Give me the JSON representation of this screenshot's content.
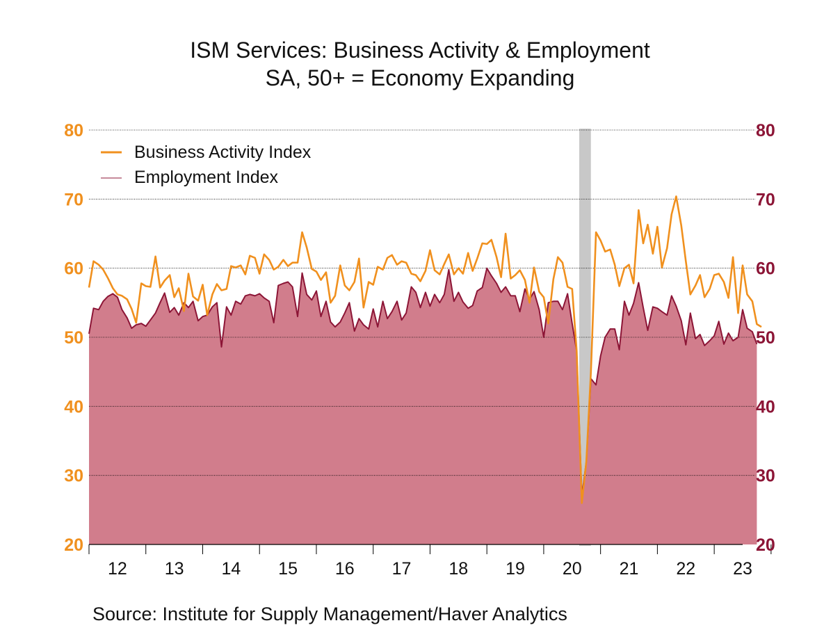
{
  "chart_data": {
    "type": "area+line",
    "title": "ISM Services: Business Activity & Employment",
    "subtitle": "SA, 50+ = Economy Expanding",
    "source": "Source:  Institute for Supply Management/Haver Analytics",
    "x_ticks": [
      "12",
      "13",
      "14",
      "15",
      "16",
      "17",
      "18",
      "19",
      "20",
      "21",
      "22",
      "23"
    ],
    "y_ticks": [
      20,
      30,
      40,
      50,
      60,
      70,
      80
    ],
    "ylim": [
      20,
      80
    ],
    "xlim": [
      2011.5,
      2023.0
    ],
    "grid": true,
    "legend_position": "top-left",
    "recession_band": [
      2020.125,
      2020.33
    ],
    "colors": {
      "business": "#f0901e",
      "employment_fill": "#d17d8c",
      "employment_line": "#8c1536",
      "left_axis": "#f0901e",
      "right_axis": "#8c1536",
      "band": "#c8c8c8"
    },
    "series": [
      {
        "name": "Business Activity Index",
        "style": "line",
        "points": [
          [
            2011.5,
            57.2
          ],
          [
            2011.58,
            61.0
          ],
          [
            2011.67,
            60.5
          ],
          [
            2011.75,
            59.8
          ],
          [
            2011.83,
            58.6
          ],
          [
            2011.92,
            57.1
          ],
          [
            2012.0,
            56.2
          ],
          [
            2012.08,
            56.0
          ],
          [
            2012.17,
            55.5
          ],
          [
            2012.25,
            54.1
          ],
          [
            2012.33,
            52.1
          ],
          [
            2012.42,
            57.8
          ],
          [
            2012.5,
            57.4
          ],
          [
            2012.58,
            57.3
          ],
          [
            2012.67,
            61.7
          ],
          [
            2012.75,
            57.2
          ],
          [
            2012.83,
            58.2
          ],
          [
            2012.92,
            59.0
          ],
          [
            2013.0,
            55.8
          ],
          [
            2013.08,
            57.1
          ],
          [
            2013.17,
            53.8
          ],
          [
            2013.25,
            59.2
          ],
          [
            2013.33,
            55.9
          ],
          [
            2013.42,
            55.3
          ],
          [
            2013.5,
            57.6
          ],
          [
            2013.58,
            53.2
          ],
          [
            2013.67,
            56.2
          ],
          [
            2013.75,
            57.7
          ],
          [
            2013.83,
            56.8
          ],
          [
            2013.92,
            57.0
          ],
          [
            2014.0,
            60.3
          ],
          [
            2014.08,
            60.1
          ],
          [
            2014.17,
            60.4
          ],
          [
            2014.25,
            59.1
          ],
          [
            2014.33,
            61.8
          ],
          [
            2014.42,
            61.5
          ],
          [
            2014.5,
            59.2
          ],
          [
            2014.58,
            62.0
          ],
          [
            2014.67,
            61.2
          ],
          [
            2014.75,
            59.8
          ],
          [
            2014.83,
            60.2
          ],
          [
            2014.92,
            61.2
          ],
          [
            2015.0,
            60.3
          ],
          [
            2015.08,
            60.8
          ],
          [
            2015.17,
            60.8
          ],
          [
            2015.25,
            65.2
          ],
          [
            2015.33,
            63.0
          ],
          [
            2015.42,
            59.9
          ],
          [
            2015.5,
            59.5
          ],
          [
            2015.58,
            58.3
          ],
          [
            2015.67,
            59.4
          ],
          [
            2015.75,
            55.0
          ],
          [
            2015.83,
            56.0
          ],
          [
            2015.92,
            60.4
          ],
          [
            2016.0,
            57.5
          ],
          [
            2016.08,
            56.8
          ],
          [
            2016.17,
            58.0
          ],
          [
            2016.25,
            61.4
          ],
          [
            2016.33,
            54.3
          ],
          [
            2016.42,
            58.0
          ],
          [
            2016.5,
            57.6
          ],
          [
            2016.58,
            60.2
          ],
          [
            2016.67,
            59.8
          ],
          [
            2016.75,
            61.5
          ],
          [
            2016.83,
            61.9
          ],
          [
            2016.92,
            60.5
          ],
          [
            2017.0,
            61.0
          ],
          [
            2017.08,
            60.8
          ],
          [
            2017.17,
            59.2
          ],
          [
            2017.25,
            59.0
          ],
          [
            2017.33,
            58.1
          ],
          [
            2017.42,
            59.6
          ],
          [
            2017.5,
            62.6
          ],
          [
            2017.58,
            59.7
          ],
          [
            2017.67,
            59.1
          ],
          [
            2017.75,
            60.6
          ],
          [
            2017.83,
            62.0
          ],
          [
            2017.92,
            59.1
          ],
          [
            2018.0,
            60.0
          ],
          [
            2018.08,
            59.2
          ],
          [
            2018.17,
            62.2
          ],
          [
            2018.25,
            59.6
          ],
          [
            2018.33,
            61.4
          ],
          [
            2018.42,
            63.6
          ],
          [
            2018.5,
            63.5
          ],
          [
            2018.58,
            64.1
          ],
          [
            2018.67,
            61.6
          ],
          [
            2018.75,
            58.7
          ],
          [
            2018.83,
            65.0
          ],
          [
            2018.92,
            58.5
          ],
          [
            2019.0,
            59.0
          ],
          [
            2019.08,
            59.7
          ],
          [
            2019.17,
            58.3
          ],
          [
            2019.25,
            55.0
          ],
          [
            2019.33,
            60.1
          ],
          [
            2019.42,
            56.6
          ],
          [
            2019.5,
            55.8
          ],
          [
            2019.58,
            52.0
          ],
          [
            2019.67,
            58.4
          ],
          [
            2019.75,
            61.6
          ],
          [
            2019.83,
            60.8
          ],
          [
            2019.92,
            57.3
          ],
          [
            2020.0,
            57.0
          ],
          [
            2020.08,
            48.0
          ],
          [
            2020.17,
            26.0
          ],
          [
            2020.25,
            32.0
          ],
          [
            2020.33,
            45.0
          ],
          [
            2020.42,
            65.2
          ],
          [
            2020.5,
            64.0
          ],
          [
            2020.58,
            62.4
          ],
          [
            2020.67,
            62.7
          ],
          [
            2020.75,
            60.5
          ],
          [
            2020.83,
            57.4
          ],
          [
            2020.92,
            60.0
          ],
          [
            2021.0,
            60.5
          ],
          [
            2021.08,
            57.8
          ],
          [
            2021.17,
            68.4
          ],
          [
            2021.25,
            63.6
          ],
          [
            2021.33,
            66.3
          ],
          [
            2021.42,
            62.1
          ],
          [
            2021.5,
            66.0
          ],
          [
            2021.58,
            60.1
          ],
          [
            2021.67,
            62.9
          ],
          [
            2021.75,
            67.8
          ],
          [
            2021.83,
            70.4
          ],
          [
            2021.92,
            66.2
          ],
          [
            2022.0,
            61.0
          ],
          [
            2022.08,
            56.2
          ],
          [
            2022.17,
            57.5
          ],
          [
            2022.25,
            59.0
          ],
          [
            2022.33,
            55.8
          ],
          [
            2022.42,
            57.0
          ],
          [
            2022.5,
            59.0
          ],
          [
            2022.58,
            59.2
          ],
          [
            2022.67,
            58.0
          ],
          [
            2022.75,
            55.7
          ],
          [
            2022.83,
            61.6
          ],
          [
            2022.92,
            53.5
          ],
          [
            2023.0,
            60.4
          ],
          [
            2023.08,
            56.2
          ],
          [
            2023.17,
            55.2
          ],
          [
            2023.25,
            51.9
          ],
          [
            2023.33,
            51.5
          ]
        ]
      },
      {
        "name": "Employment Index",
        "style": "area",
        "points": [
          [
            2011.5,
            50.5
          ],
          [
            2011.58,
            54.2
          ],
          [
            2011.67,
            54.0
          ],
          [
            2011.75,
            55.2
          ],
          [
            2011.83,
            55.9
          ],
          [
            2011.92,
            56.3
          ],
          [
            2012.0,
            55.8
          ],
          [
            2012.08,
            54.0
          ],
          [
            2012.17,
            52.8
          ],
          [
            2012.25,
            51.3
          ],
          [
            2012.33,
            51.8
          ],
          [
            2012.42,
            52.0
          ],
          [
            2012.5,
            51.6
          ],
          [
            2012.58,
            52.5
          ],
          [
            2012.67,
            53.5
          ],
          [
            2012.75,
            55.0
          ],
          [
            2012.83,
            56.4
          ],
          [
            2012.92,
            53.6
          ],
          [
            2013.0,
            54.3
          ],
          [
            2013.08,
            53.2
          ],
          [
            2013.17,
            55.0
          ],
          [
            2013.25,
            54.3
          ],
          [
            2013.33,
            55.2
          ],
          [
            2013.42,
            52.4
          ],
          [
            2013.5,
            53.0
          ],
          [
            2013.58,
            53.2
          ],
          [
            2013.67,
            54.4
          ],
          [
            2013.75,
            55.0
          ],
          [
            2013.83,
            48.6
          ],
          [
            2013.92,
            54.4
          ],
          [
            2014.0,
            53.2
          ],
          [
            2014.08,
            55.2
          ],
          [
            2014.17,
            54.8
          ],
          [
            2014.25,
            56.0
          ],
          [
            2014.33,
            56.2
          ],
          [
            2014.42,
            56.0
          ],
          [
            2014.5,
            56.3
          ],
          [
            2014.58,
            55.7
          ],
          [
            2014.67,
            55.2
          ],
          [
            2014.75,
            52.1
          ],
          [
            2014.83,
            57.5
          ],
          [
            2014.92,
            57.8
          ],
          [
            2015.0,
            58.0
          ],
          [
            2015.08,
            57.3
          ],
          [
            2015.17,
            53.0
          ],
          [
            2015.25,
            59.3
          ],
          [
            2015.33,
            56.2
          ],
          [
            2015.42,
            55.4
          ],
          [
            2015.5,
            56.7
          ],
          [
            2015.58,
            53.0
          ],
          [
            2015.67,
            55.2
          ],
          [
            2015.75,
            52.2
          ],
          [
            2015.83,
            51.5
          ],
          [
            2015.92,
            52.2
          ],
          [
            2016.0,
            53.5
          ],
          [
            2016.08,
            55.0
          ],
          [
            2016.17,
            50.9
          ],
          [
            2016.25,
            52.7
          ],
          [
            2016.33,
            51.8
          ],
          [
            2016.42,
            51.2
          ],
          [
            2016.5,
            54.1
          ],
          [
            2016.58,
            51.5
          ],
          [
            2016.67,
            55.2
          ],
          [
            2016.75,
            52.7
          ],
          [
            2016.83,
            53.7
          ],
          [
            2016.92,
            55.2
          ],
          [
            2017.0,
            52.5
          ],
          [
            2017.08,
            53.5
          ],
          [
            2017.17,
            57.3
          ],
          [
            2017.25,
            56.5
          ],
          [
            2017.33,
            54.3
          ],
          [
            2017.42,
            56.5
          ],
          [
            2017.5,
            54.5
          ],
          [
            2017.58,
            56.2
          ],
          [
            2017.67,
            55.0
          ],
          [
            2017.75,
            56.2
          ],
          [
            2017.83,
            59.8
          ],
          [
            2017.92,
            55.2
          ],
          [
            2018.0,
            56.5
          ],
          [
            2018.08,
            55.1
          ],
          [
            2018.17,
            54.2
          ],
          [
            2018.25,
            54.6
          ],
          [
            2018.33,
            56.7
          ],
          [
            2018.42,
            57.2
          ],
          [
            2018.5,
            60.0
          ],
          [
            2018.58,
            58.9
          ],
          [
            2018.67,
            57.8
          ],
          [
            2018.75,
            56.5
          ],
          [
            2018.83,
            57.3
          ],
          [
            2018.92,
            56.0
          ],
          [
            2019.0,
            56.0
          ],
          [
            2019.08,
            53.7
          ],
          [
            2019.17,
            57.0
          ],
          [
            2019.25,
            55.5
          ],
          [
            2019.33,
            56.6
          ],
          [
            2019.42,
            54.0
          ],
          [
            2019.5,
            50.0
          ],
          [
            2019.58,
            55.0
          ],
          [
            2019.67,
            55.2
          ],
          [
            2019.75,
            55.2
          ],
          [
            2019.83,
            54.0
          ],
          [
            2019.92,
            56.3
          ],
          [
            2020.0,
            52.0
          ],
          [
            2020.08,
            48.0
          ],
          [
            2020.17,
            27.0
          ],
          [
            2020.25,
            32.0
          ],
          [
            2020.33,
            44.0
          ],
          [
            2020.42,
            43.1
          ],
          [
            2020.5,
            47.3
          ],
          [
            2020.58,
            50.0
          ],
          [
            2020.67,
            51.2
          ],
          [
            2020.75,
            51.2
          ],
          [
            2020.83,
            48.2
          ],
          [
            2020.92,
            55.2
          ],
          [
            2021.0,
            53.2
          ],
          [
            2021.08,
            54.9
          ],
          [
            2021.17,
            57.9
          ],
          [
            2021.25,
            54.3
          ],
          [
            2021.33,
            51.0
          ],
          [
            2021.42,
            54.4
          ],
          [
            2021.5,
            54.2
          ],
          [
            2021.58,
            53.7
          ],
          [
            2021.67,
            53.2
          ],
          [
            2021.75,
            56.0
          ],
          [
            2021.83,
            54.5
          ],
          [
            2021.92,
            52.4
          ],
          [
            2022.0,
            48.9
          ],
          [
            2022.08,
            53.5
          ],
          [
            2022.17,
            49.8
          ],
          [
            2022.25,
            50.4
          ],
          [
            2022.33,
            48.8
          ],
          [
            2022.42,
            49.5
          ],
          [
            2022.5,
            50.2
          ],
          [
            2022.58,
            52.3
          ],
          [
            2022.67,
            49.0
          ],
          [
            2022.75,
            50.6
          ],
          [
            2022.83,
            49.5
          ],
          [
            2022.92,
            50.0
          ],
          [
            2023.0,
            54.0
          ],
          [
            2023.08,
            51.3
          ],
          [
            2023.17,
            50.8
          ],
          [
            2023.25,
            49.0
          ]
        ]
      }
    ]
  }
}
